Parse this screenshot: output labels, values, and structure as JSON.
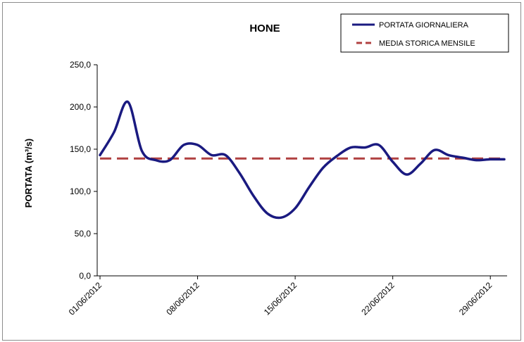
{
  "chart_data": {
    "type": "line",
    "title": "HONE",
    "xlabel": "",
    "ylabel": "PORTATA (m³/s)",
    "ylim": [
      0,
      250
    ],
    "yticks": [
      "0,0",
      "50,0",
      "100,0",
      "150,0",
      "200,0",
      "250,0"
    ],
    "xticks": [
      "01/06/2012",
      "08/06/2012",
      "15/06/2012",
      "22/06/2012",
      "29/06/2012"
    ],
    "grid": false,
    "legend_position": "top-right",
    "colors": {
      "daily": "#1a1a80",
      "monthly_mean": "#b04040"
    },
    "x": [
      "01/06/2012",
      "02/06/2012",
      "03/06/2012",
      "04/06/2012",
      "05/06/2012",
      "06/06/2012",
      "07/06/2012",
      "08/06/2012",
      "09/06/2012",
      "10/06/2012",
      "11/06/2012",
      "12/06/2012",
      "13/06/2012",
      "14/06/2012",
      "15/06/2012",
      "16/06/2012",
      "17/06/2012",
      "18/06/2012",
      "19/06/2012",
      "20/06/2012",
      "21/06/2012",
      "22/06/2012",
      "23/06/2012",
      "24/06/2012",
      "25/06/2012",
      "26/06/2012",
      "27/06/2012",
      "28/06/2012",
      "29/06/2012",
      "30/06/2012"
    ],
    "series": [
      {
        "name": "PORTATA GIORNALIERA",
        "style": "solid",
        "values": [
          143,
          170,
          206,
          148,
          137,
          137,
          155,
          155,
          143,
          143,
          122,
          95,
          74,
          69,
          80,
          105,
          128,
          142,
          152,
          152,
          155,
          135,
          120,
          133,
          149,
          143,
          140,
          137,
          138,
          138
        ]
      },
      {
        "name": "MEDIA STORICA MENSILE",
        "style": "dashed",
        "values": [
          139,
          139,
          139,
          139,
          139,
          139,
          139,
          139,
          139,
          139,
          139,
          139,
          139,
          139,
          139,
          139,
          139,
          139,
          139,
          139,
          139,
          139,
          139,
          139,
          139,
          139,
          139,
          139,
          139,
          139
        ]
      }
    ]
  }
}
